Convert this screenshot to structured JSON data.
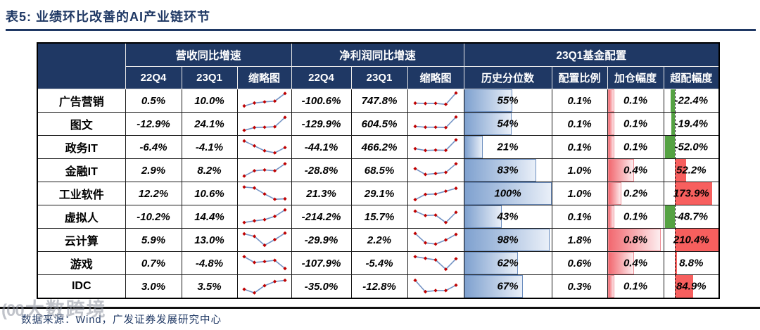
{
  "title": "表5:  业绩环比改善的AI产业链环节",
  "header": {
    "group_revenue": "营收同比增速",
    "group_profit": "净利润同比增速",
    "group_fund": "23Q1基金配置",
    "col_22q4": "22Q4",
    "col_23q1": "23Q1",
    "col_sparkline": "缩略图",
    "col_percentile": "历史分位数",
    "col_alloc_ratio": "配置比例",
    "col_add_amount": "加仓幅度",
    "col_overweight": "超配幅度"
  },
  "rows": [
    {
      "name": "广告营销",
      "rev_22q4": "0.5%",
      "rev_23q1": "10.0%",
      "rev_spark": [
        15,
        33,
        40,
        45,
        92
      ],
      "np_22q4": "-100.6%",
      "np_23q1": "747.8%",
      "np_spark": [
        32,
        30,
        31,
        25,
        95
      ],
      "percentile": 55,
      "percentile_label": "55%",
      "alloc_label": "0.1%",
      "add": 0.1,
      "add_label": "0.1%",
      "over": -22.4,
      "over_label": "-22.4%"
    },
    {
      "name": "图文",
      "rev_22q4": "-12.9%",
      "rev_23q1": "24.1%",
      "rev_spark": [
        8,
        25,
        27,
        30,
        88
      ],
      "np_22q4": "-129.9%",
      "np_23q1": "604.5%",
      "np_spark": [
        32,
        27,
        27,
        25,
        90
      ],
      "percentile": 54,
      "percentile_label": "54%",
      "alloc_label": "0.1%",
      "add": 0.1,
      "add_label": "0.1%",
      "over": -19.4,
      "over_label": "-19.4%"
    },
    {
      "name": "政务IT",
      "rev_22q4": "-6.4%",
      "rev_23q1": "-4.1%",
      "rev_spark": [
        85,
        55,
        25,
        12,
        45
      ],
      "np_22q4": "-44.1%",
      "np_23q1": "466.2%",
      "np_spark": [
        38,
        27,
        29,
        28,
        92
      ],
      "percentile": 21,
      "percentile_label": "21%",
      "alloc_label": "0.1%",
      "add": 0.1,
      "add_label": "0.1%",
      "over": -52.0,
      "over_label": "-52.0%"
    },
    {
      "name": "金融IT",
      "rev_22q4": "2.9%",
      "rev_23q1": "8.2%",
      "rev_spark": [
        12,
        45,
        50,
        45,
        88
      ],
      "np_22q4": "-28.8%",
      "np_23q1": "68.5%",
      "np_spark": [
        58,
        22,
        28,
        35,
        88
      ],
      "percentile": 83,
      "percentile_label": "83%",
      "alloc_label": "1.0%",
      "add": 0.4,
      "add_label": "0.4%",
      "over": 52.2,
      "over_label": "52.2%"
    },
    {
      "name": "工业软件",
      "rev_22q4": "12.2%",
      "rev_23q1": "10.6%",
      "rev_spark": [
        88,
        82,
        45,
        12,
        15
      ],
      "np_22q4": "21.3%",
      "np_23q1": "29.1%",
      "np_spark": [
        10,
        42,
        45,
        62,
        80
      ],
      "percentile": 100,
      "percentile_label": "100%",
      "alloc_label": "1.0%",
      "add": 0.2,
      "add_label": "0.2%",
      "over": 173.9,
      "over_label": "173.9%"
    },
    {
      "name": "虚拟人",
      "rev_22q4": "-10.2%",
      "rev_23q1": "14.4%",
      "rev_spark": [
        12,
        22,
        30,
        50,
        90
      ],
      "np_22q4": "-214.2%",
      "np_23q1": "15.7%",
      "np_spark": [
        82,
        55,
        58,
        12,
        75
      ],
      "percentile": 43,
      "percentile_label": "43%",
      "alloc_label": "0.1%",
      "add": 0.1,
      "add_label": "0.1%",
      "over": -48.7,
      "over_label": "-48.7%"
    },
    {
      "name": "云计算",
      "rev_22q4": "5.9%",
      "rev_23q1": "13.0%",
      "rev_spark": [
        85,
        70,
        15,
        50,
        90
      ],
      "np_22q4": "-29.9%",
      "np_23q1": "2.2%",
      "np_spark": [
        88,
        30,
        22,
        48,
        82
      ],
      "percentile": 98,
      "percentile_label": "98%",
      "alloc_label": "1.8%",
      "add": 0.8,
      "add_label": "0.8%",
      "over": 210.4,
      "over_label": "210.4%"
    },
    {
      "name": "游戏",
      "rev_22q4": "0.7%",
      "rev_23q1": "-4.8%",
      "rev_spark": [
        88,
        52,
        58,
        65,
        15
      ],
      "np_22q4": "-107.9%",
      "np_23q1": "-5.4%",
      "np_spark": [
        88,
        78,
        68,
        10,
        75
      ],
      "percentile": 62,
      "percentile_label": "62%",
      "alloc_label": "0.6%",
      "add": 0.4,
      "add_label": "0.4%",
      "over": 8.8,
      "over_label": "8.8%"
    },
    {
      "name": "IDC",
      "rev_22q4": "3.0%",
      "rev_23q1": "3.5%",
      "rev_spark": [
        30,
        8,
        52,
        78,
        85
      ],
      "np_22q4": "-35.0%",
      "np_23q1": "-12.8%",
      "np_spark": [
        85,
        15,
        22,
        22,
        55
      ],
      "percentile": 67,
      "percentile_label": "67%",
      "alloc_label": "0.3%",
      "add": 0.1,
      "add_label": "0.1%",
      "over": 84.9,
      "over_label": "84.9%"
    }
  ],
  "footer": "数据来源：Wind，广发证券发展研究中心",
  "watermark": {
    "logo": "(00",
    "text": "大数跨境"
  },
  "colors": {
    "navy": "#1F3864",
    "header_bg": "#1F3864",
    "spark_line": "#7493C4",
    "spark_marker": "#C00000",
    "percentile_from": "#7FA1CF",
    "percentile_to": "#E9EFF8",
    "percentile_border": "#6C8EBF",
    "add_from": "#F2686F",
    "add_to": "#FDEDEF",
    "add_border": "#EE8C94",
    "over_positive": "#F75F5E",
    "over_negative": "#55A243"
  }
}
